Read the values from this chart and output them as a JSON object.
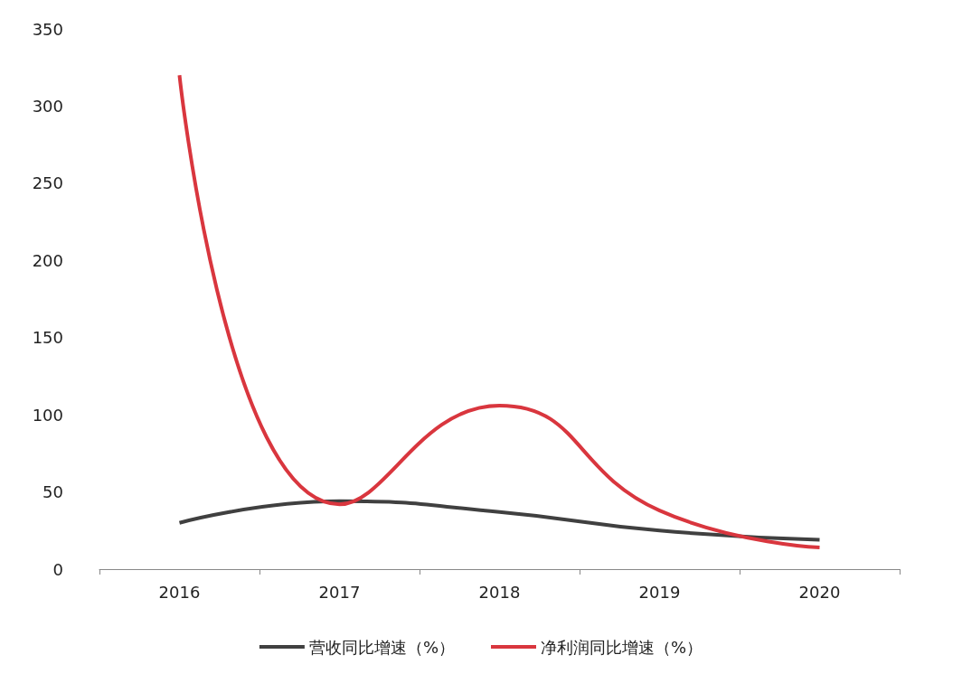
{
  "chart_data": {
    "type": "line",
    "categories": [
      "2016",
      "2017",
      "2018",
      "2019",
      "2020"
    ],
    "series": [
      {
        "name": "营收同比增速（%）",
        "color": "#404040",
        "values": [
          30,
          44,
          37,
          25,
          19
        ]
      },
      {
        "name": "净利润同比增速（%）",
        "color": "#d9363e",
        "values": [
          320,
          42,
          106,
          38,
          14
        ]
      }
    ],
    "ylim": [
      0,
      350
    ],
    "yticks": [
      0,
      50,
      100,
      150,
      200,
      250,
      300,
      350
    ],
    "grid": false,
    "legend": "bottom",
    "marker": "none"
  }
}
